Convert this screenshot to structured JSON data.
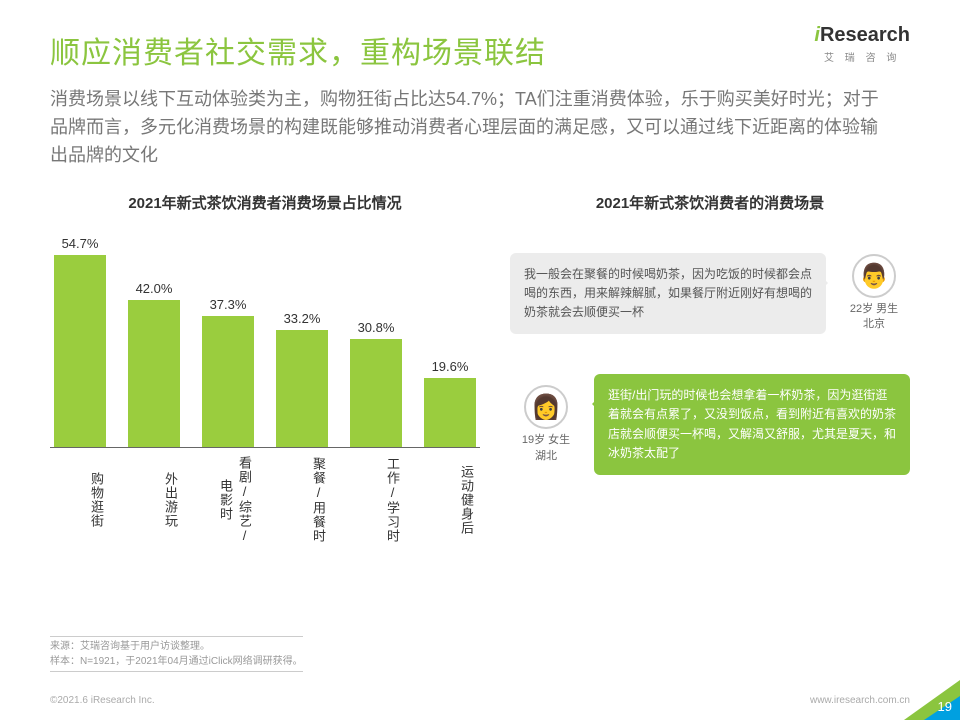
{
  "logo": {
    "brand": "Research",
    "brand_i": "i",
    "sub": "艾 瑞 咨 询"
  },
  "title": "顺应消费者社交需求，重构场景联结",
  "subtitle": "消费场景以线下互动体验类为主，购物狂街占比达54.7%；TA们注重消费体验，乐于购买美好时光；对于品牌而言，多元化消费场景的构建既能够推动消费者心理层面的满足感，又可以通过线下近距离的体验输出品牌的文化",
  "chart": {
    "type": "bar",
    "title": "2021年新式茶饮消费者消费场景占比情况",
    "categories": [
      "购物逛街",
      "外出游玩",
      "看剧/综艺/电影时",
      "聚餐/用餐时",
      "工作/学习时",
      "运动健身后"
    ],
    "values": [
      54.7,
      42.0,
      37.3,
      33.2,
      30.8,
      19.6
    ],
    "value_labels": [
      "54.7%",
      "42.0%",
      "37.3%",
      "33.2%",
      "30.8%",
      "19.6%"
    ],
    "ylim_max": 60,
    "bar_color": "#9acd3e",
    "label_fontsize": 13,
    "label_color": "#333333",
    "axis_color": "#666666"
  },
  "right_title": "2021年新式茶饮消费者的消费场景",
  "quotes": [
    {
      "text": "我一般会在聚餐的时候喝奶茶，因为吃饭的时候都会点喝的东西，用来解辣解腻，如果餐厅附近刚好有想喝的奶茶就会去顺便买一杯",
      "persona": "22岁 男生\n北京",
      "side": "right",
      "bubble_bg": "#ececec",
      "bubble_text_color": "#555555",
      "avatar_glyph": "👨"
    },
    {
      "text": "逛街/出门玩的时候也会想拿着一杯奶茶，因为逛街逛着就会有点累了，又没到饭点，看到附近有喜欢的奶茶店就会顺便买一杯喝，又解渴又舒服，尤其是夏天，和冰奶茶太配了",
      "persona": "19岁 女生\n湖北",
      "side": "left",
      "bubble_bg": "#8bc53f",
      "bubble_text_color": "#ffffff",
      "avatar_glyph": "👩"
    }
  ],
  "source": {
    "line1": "来源：艾瑞咨询基于用户访谈整理。",
    "line2": "样本：N=1921，于2021年04月通过iClick网络调研获得。"
  },
  "footer": {
    "left": "©2021.6 iResearch Inc.",
    "right": "www.iresearch.com.cn"
  },
  "page_number": "19",
  "colors": {
    "accent": "#8bc53f",
    "corner_blue": "#00a0e0",
    "text_muted": "#777777",
    "background": "#ffffff"
  }
}
